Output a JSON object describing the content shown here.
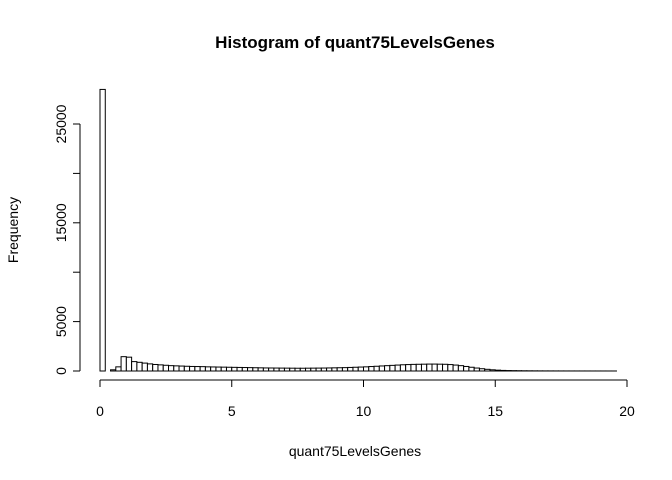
{
  "chart_data": {
    "type": "bar",
    "title": "Histogram of quant75LevelsGenes",
    "xlabel": "quant75LevelsGenes",
    "ylabel": "Frequency",
    "xlim": [
      0,
      20
    ],
    "ylim": [
      0,
      28500
    ],
    "x_ticks": [
      "0",
      "5",
      "10",
      "15",
      "20"
    ],
    "y_ticks": [
      "0",
      "5000",
      "15000",
      "25000"
    ],
    "bin_width": 0.2,
    "bin_start": 0,
    "values": [
      28500,
      0,
      120,
      420,
      1450,
      1400,
      950,
      880,
      800,
      720,
      660,
      620,
      580,
      540,
      520,
      500,
      480,
      460,
      450,
      440,
      420,
      410,
      400,
      390,
      380,
      370,
      360,
      350,
      340,
      330,
      320,
      310,
      305,
      300,
      295,
      290,
      285,
      280,
      280,
      285,
      290,
      295,
      300,
      310,
      320,
      330,
      340,
      360,
      380,
      400,
      420,
      450,
      480,
      510,
      540,
      570,
      600,
      630,
      650,
      670,
      680,
      690,
      700,
      700,
      690,
      680,
      650,
      600,
      540,
      460,
      380,
      300,
      230,
      170,
      120,
      85,
      60,
      45,
      35,
      28,
      22,
      18,
      15,
      12,
      10,
      9,
      8,
      7,
      6,
      5,
      5,
      4,
      4,
      3,
      3,
      3,
      2,
      2
    ]
  }
}
